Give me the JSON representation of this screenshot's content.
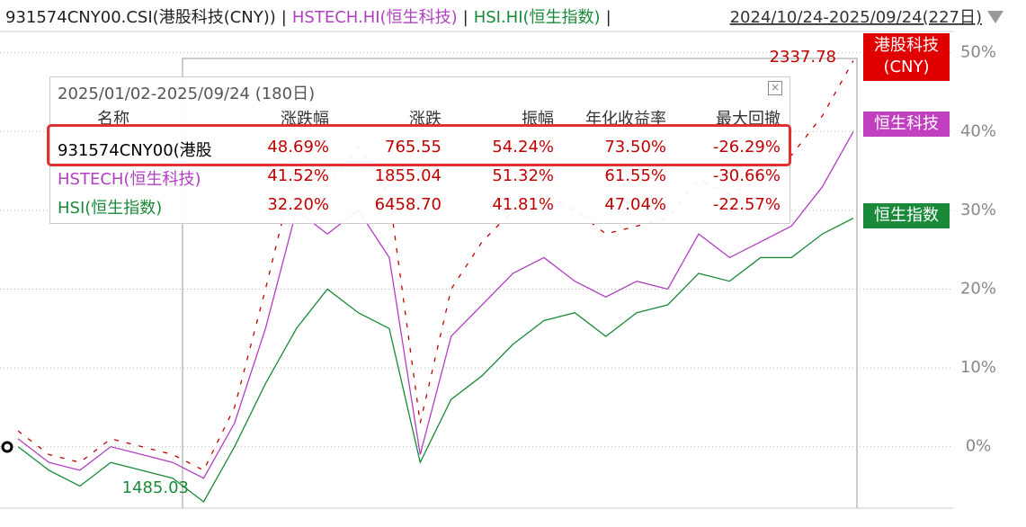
{
  "header": {
    "separator": "|",
    "range": "2024/10/24-2025/09/24(227日)"
  },
  "chart_data": {
    "type": "line",
    "ylim": [
      -7.8,
      52.7
    ],
    "yticks": [
      {
        "value": 0,
        "label": "0%"
      },
      {
        "value": 10,
        "label": "10%"
      },
      {
        "value": 20,
        "label": "20%"
      },
      {
        "value": 30,
        "label": "30%"
      },
      {
        "value": 40,
        "label": "40%"
      },
      {
        "value": 50,
        "label": "50%"
      }
    ],
    "grid": true,
    "categories": [
      null,
      null,
      null,
      null,
      null,
      null,
      null,
      null,
      null,
      null,
      null,
      null,
      null,
      null,
      null,
      null,
      null,
      null,
      null,
      null,
      null,
      null,
      null,
      null,
      null,
      null,
      null,
      null
    ],
    "series": [
      {
        "name": "931574CNY00.CSI(港股科技(CNY))",
        "color": "#c00000",
        "dashed": true,
        "values": [
          2,
          -1,
          -2,
          1,
          0,
          -1,
          -3,
          5,
          20,
          36,
          33,
          38,
          32,
          3,
          20,
          26,
          30,
          32,
          30,
          27,
          28,
          29,
          34,
          32,
          34,
          37,
          42,
          49
        ]
      },
      {
        "name": "HSTECH.HI(恒生科技)",
        "color": "#b040c0",
        "values": [
          1,
          -2,
          -3,
          0,
          -1,
          -2,
          -4,
          3,
          15,
          30,
          27,
          30,
          24,
          -1,
          14,
          18,
          22,
          24,
          21,
          19,
          21,
          20,
          27,
          24,
          26,
          28,
          33,
          40
        ]
      },
      {
        "name": "HSI.HI(恒生指数)",
        "color": "#1a8a3a",
        "values": [
          0,
          -3,
          -5,
          -2,
          -3,
          -4,
          -7,
          0,
          8,
          15,
          20,
          17,
          15,
          -2,
          6,
          9,
          13,
          16,
          17,
          14,
          17,
          18,
          22,
          21,
          24,
          24,
          27,
          29
        ]
      }
    ],
    "annotations": [
      "2337.78",
      "1485.03"
    ],
    "end_labels": [
      [
        "港股科技",
        "(CNY)"
      ],
      [
        "恒生科技"
      ],
      [
        "恒生指数"
      ]
    ]
  },
  "stats": {
    "title": "2025/01/02-2025/09/24 (180日)",
    "columns": [
      "名称",
      "涨跌幅",
      "涨跌",
      "振幅",
      "年化收益率",
      "最大回撤"
    ],
    "rows": [
      [
        "931574CNY00(港股",
        "48.69%",
        "765.55",
        "54.24%",
        "73.50%",
        "-26.29%"
      ],
      [
        "HSTECH(恒生科技)",
        "41.52%",
        "1855.04",
        "51.32%",
        "61.55%",
        "-30.66%"
      ],
      [
        "HSI(恒生指数)",
        "32.20%",
        "6458.70",
        "41.81%",
        "47.04%",
        "-22.57%"
      ]
    ]
  }
}
